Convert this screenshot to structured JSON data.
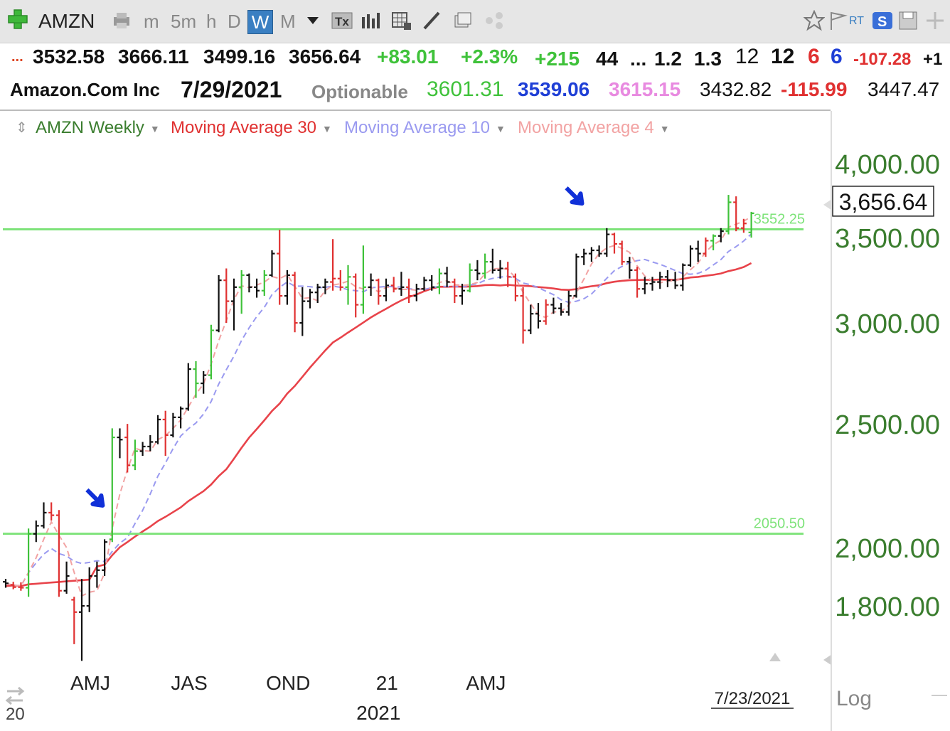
{
  "toolbar": {
    "symbol": "AMZN",
    "timeframes": [
      "m",
      "5m",
      "h",
      "D",
      "W",
      "M"
    ],
    "active_timeframe": "W",
    "rt_label": "RT"
  },
  "quote_row1": {
    "ellipsis": "...",
    "open": "3532.58",
    "high": "3666.11",
    "low": "3499.16",
    "close": "3656.64",
    "change": "+83.01",
    "change_pct": "+2.3%",
    "v1": "+215",
    "v2": "44",
    "v3": "...",
    "v4": "1.2",
    "v5": "1.3",
    "v6": "12",
    "v7": "12",
    "v8": "6",
    "v9": "6",
    "v10": "-107.28",
    "v11": "+1"
  },
  "quote_row2": {
    "name": "Amazon.Com Inc",
    "date": "7/29/2021",
    "optionable": "Optionable",
    "p1": "3601.31",
    "p2": "3539.06",
    "p3": "3615.15",
    "p4": "3432.82",
    "p5": "-115.99",
    "p6": "3447.47"
  },
  "legend": {
    "price": "AMZN Weekly",
    "ma30": "Moving Average 30",
    "ma10": "Moving Average 10",
    "ma4": "Moving Average 4"
  },
  "colors": {
    "up": "#3fc23a",
    "down": "#e03131",
    "neutral": "#111111",
    "ma30": "#e8434a",
    "ma10": "#9a9af0",
    "ma4": "#f2a3a3",
    "hline": "#7ee37a",
    "axis_text": "#3a7d2e",
    "arrow": "#1030d8"
  },
  "chart_data": {
    "type": "bar",
    "title": "AMZN Weekly",
    "scale": "log",
    "y_ticks": [
      {
        "value": 4000,
        "label": "4,000.00"
      },
      {
        "value": 3500,
        "label": "3,500.00"
      },
      {
        "value": 3000,
        "label": "3,000.00"
      },
      {
        "value": 2500,
        "label": "2,500.00"
      },
      {
        "value": 2000,
        "label": "2,000.00"
      },
      {
        "value": 1800,
        "label": "1,800.00"
      }
    ],
    "x_ticks": [
      {
        "index": 10,
        "label": "AMJ"
      },
      {
        "index": 23,
        "label": "JAS"
      },
      {
        "index": 36,
        "label": "OND"
      },
      {
        "index": 49,
        "label": "21"
      },
      {
        "index": 62,
        "label": "AMJ"
      }
    ],
    "x_year_label": {
      "index": 49,
      "label": "2021"
    },
    "x_left_label": "20",
    "last_date_label": "7/23/2021",
    "log_label": "Log",
    "last_price_label": "3,656.64",
    "hlines": [
      {
        "value": 3552.25,
        "label": "3552.25"
      },
      {
        "value": 2050.5,
        "label": "2050.50"
      }
    ],
    "arrows": [
      {
        "index": 12,
        "value": 2180
      },
      {
        "index": 75,
        "value": 3760
      }
    ],
    "series_names": [
      "AMZN Weekly",
      "Moving Average 30",
      "Moving Average 10",
      "Moving Average 4"
    ],
    "weeks": [
      {
        "o": 1880,
        "h": 1890,
        "l": 1860,
        "c": 1875,
        "t": "n"
      },
      {
        "o": 1870,
        "h": 1880,
        "l": 1855,
        "c": 1862,
        "t": "d"
      },
      {
        "o": 1862,
        "h": 1878,
        "l": 1850,
        "c": 1860,
        "t": "d"
      },
      {
        "o": 1860,
        "h": 2070,
        "l": 1830,
        "c": 2050,
        "t": "u"
      },
      {
        "o": 2050,
        "h": 2100,
        "l": 2020,
        "c": 2080,
        "t": "n"
      },
      {
        "o": 2080,
        "h": 2170,
        "l": 2070,
        "c": 2130,
        "t": "n"
      },
      {
        "o": 2130,
        "h": 2170,
        "l": 2100,
        "c": 2120,
        "t": "d"
      },
      {
        "o": 2120,
        "h": 2140,
        "l": 1830,
        "c": 1850,
        "t": "d"
      },
      {
        "o": 1850,
        "h": 1950,
        "l": 1840,
        "c": 1900,
        "t": "n"
      },
      {
        "o": 1820,
        "h": 1830,
        "l": 1680,
        "c": 1780,
        "t": "d"
      },
      {
        "o": 1780,
        "h": 1890,
        "l": 1630,
        "c": 1800,
        "t": "n"
      },
      {
        "o": 1800,
        "h": 1930,
        "l": 1780,
        "c": 1900,
        "t": "n"
      },
      {
        "o": 1900,
        "h": 1950,
        "l": 1860,
        "c": 1920,
        "t": "n"
      },
      {
        "o": 1920,
        "h": 2030,
        "l": 1900,
        "c": 2020,
        "t": "n"
      },
      {
        "o": 2030,
        "h": 2480,
        "l": 2020,
        "c": 2440,
        "t": "u"
      },
      {
        "o": 2440,
        "h": 2480,
        "l": 2350,
        "c": 2430,
        "t": "n"
      },
      {
        "o": 2440,
        "h": 2500,
        "l": 2290,
        "c": 2320,
        "t": "d"
      },
      {
        "o": 2320,
        "h": 2430,
        "l": 2300,
        "c": 2380,
        "t": "u"
      },
      {
        "o": 2380,
        "h": 2420,
        "l": 2360,
        "c": 2400,
        "t": "n"
      },
      {
        "o": 2400,
        "h": 2450,
        "l": 2380,
        "c": 2420,
        "t": "n"
      },
      {
        "o": 2420,
        "h": 2540,
        "l": 2410,
        "c": 2520,
        "t": "n"
      },
      {
        "o": 2520,
        "h": 2560,
        "l": 2360,
        "c": 2450,
        "t": "d"
      },
      {
        "o": 2450,
        "h": 2550,
        "l": 2440,
        "c": 2530,
        "t": "n"
      },
      {
        "o": 2530,
        "h": 2580,
        "l": 2480,
        "c": 2570,
        "t": "n"
      },
      {
        "o": 2570,
        "h": 2790,
        "l": 2560,
        "c": 2760,
        "t": "n"
      },
      {
        "o": 2760,
        "h": 2800,
        "l": 2620,
        "c": 2690,
        "t": "u"
      },
      {
        "o": 2690,
        "h": 2750,
        "l": 2640,
        "c": 2730,
        "t": "n"
      },
      {
        "o": 2730,
        "h": 2990,
        "l": 2710,
        "c": 2960,
        "t": "u"
      },
      {
        "o": 2960,
        "h": 3270,
        "l": 2950,
        "c": 3240,
        "t": "n"
      },
      {
        "o": 3240,
        "h": 3310,
        "l": 3000,
        "c": 3120,
        "t": "d"
      },
      {
        "o": 3120,
        "h": 3250,
        "l": 2960,
        "c": 3200,
        "t": "n"
      },
      {
        "o": 3200,
        "h": 3300,
        "l": 3050,
        "c": 3270,
        "t": "u"
      },
      {
        "o": 3270,
        "h": 3280,
        "l": 3170,
        "c": 3200,
        "t": "n"
      },
      {
        "o": 3200,
        "h": 3250,
        "l": 3140,
        "c": 3180,
        "t": "n"
      },
      {
        "o": 3180,
        "h": 3300,
        "l": 3150,
        "c": 3270,
        "t": "u"
      },
      {
        "o": 3270,
        "h": 3420,
        "l": 3260,
        "c": 3400,
        "t": "n"
      },
      {
        "o": 3400,
        "h": 3550,
        "l": 3100,
        "c": 3150,
        "t": "d"
      },
      {
        "o": 3150,
        "h": 3300,
        "l": 3100,
        "c": 3270,
        "t": "n"
      },
      {
        "o": 3270,
        "h": 3290,
        "l": 2950,
        "c": 3000,
        "t": "d"
      },
      {
        "o": 3000,
        "h": 3200,
        "l": 2930,
        "c": 3120,
        "t": "n"
      },
      {
        "o": 3120,
        "h": 3190,
        "l": 3080,
        "c": 3170,
        "t": "n"
      },
      {
        "o": 3170,
        "h": 3220,
        "l": 3110,
        "c": 3200,
        "t": "n"
      },
      {
        "o": 3200,
        "h": 3250,
        "l": 3160,
        "c": 3230,
        "t": "n"
      },
      {
        "o": 3230,
        "h": 3490,
        "l": 3180,
        "c": 3250,
        "t": "d"
      },
      {
        "o": 3250,
        "h": 3300,
        "l": 3180,
        "c": 3200,
        "t": "d"
      },
      {
        "o": 3200,
        "h": 3330,
        "l": 3100,
        "c": 3260,
        "t": "u"
      },
      {
        "o": 3260,
        "h": 3280,
        "l": 3030,
        "c": 3100,
        "t": "d"
      },
      {
        "o": 3100,
        "h": 3450,
        "l": 3050,
        "c": 3200,
        "t": "u"
      },
      {
        "o": 3200,
        "h": 3280,
        "l": 3150,
        "c": 3240,
        "t": "n"
      },
      {
        "o": 3240,
        "h": 3250,
        "l": 3100,
        "c": 3150,
        "t": "d"
      },
      {
        "o": 3150,
        "h": 3250,
        "l": 3120,
        "c": 3210,
        "t": "n"
      },
      {
        "o": 3210,
        "h": 3260,
        "l": 3170,
        "c": 3190,
        "t": "d"
      },
      {
        "o": 3190,
        "h": 3290,
        "l": 3150,
        "c": 3200,
        "t": "n"
      },
      {
        "o": 3200,
        "h": 3250,
        "l": 3110,
        "c": 3150,
        "t": "d"
      },
      {
        "o": 3150,
        "h": 3220,
        "l": 3120,
        "c": 3190,
        "t": "n"
      },
      {
        "o": 3190,
        "h": 3260,
        "l": 3180,
        "c": 3240,
        "t": "n"
      },
      {
        "o": 3240,
        "h": 3270,
        "l": 3180,
        "c": 3200,
        "t": "n"
      },
      {
        "o": 3200,
        "h": 3310,
        "l": 3160,
        "c": 3280,
        "t": "u"
      },
      {
        "o": 3280,
        "h": 3320,
        "l": 3200,
        "c": 3230,
        "t": "n"
      },
      {
        "o": 3230,
        "h": 3250,
        "l": 3110,
        "c": 3150,
        "t": "d"
      },
      {
        "o": 3150,
        "h": 3220,
        "l": 3100,
        "c": 3180,
        "t": "n"
      },
      {
        "o": 3180,
        "h": 3340,
        "l": 3170,
        "c": 3300,
        "t": "u"
      },
      {
        "o": 3300,
        "h": 3360,
        "l": 3240,
        "c": 3280,
        "t": "n"
      },
      {
        "o": 3280,
        "h": 3400,
        "l": 3250,
        "c": 3350,
        "t": "u"
      },
      {
        "o": 3350,
        "h": 3430,
        "l": 3280,
        "c": 3300,
        "t": "n"
      },
      {
        "o": 3300,
        "h": 3360,
        "l": 3250,
        "c": 3310,
        "t": "n"
      },
      {
        "o": 3310,
        "h": 3350,
        "l": 3200,
        "c": 3260,
        "t": "d"
      },
      {
        "o": 3260,
        "h": 3280,
        "l": 3120,
        "c": 3150,
        "t": "d"
      },
      {
        "o": 3150,
        "h": 3200,
        "l": 2890,
        "c": 2960,
        "t": "d"
      },
      {
        "o": 2960,
        "h": 3100,
        "l": 2940,
        "c": 3050,
        "t": "n"
      },
      {
        "o": 3050,
        "h": 3110,
        "l": 2970,
        "c": 3010,
        "t": "n"
      },
      {
        "o": 3010,
        "h": 3130,
        "l": 2990,
        "c": 3100,
        "t": "d"
      },
      {
        "o": 3100,
        "h": 3140,
        "l": 3050,
        "c": 3080,
        "t": "n"
      },
      {
        "o": 3080,
        "h": 3110,
        "l": 3040,
        "c": 3060,
        "t": "n"
      },
      {
        "o": 3060,
        "h": 3180,
        "l": 3040,
        "c": 3150,
        "t": "n"
      },
      {
        "o": 3150,
        "h": 3400,
        "l": 3140,
        "c": 3380,
        "t": "n"
      },
      {
        "o": 3380,
        "h": 3430,
        "l": 3330,
        "c": 3400,
        "t": "n"
      },
      {
        "o": 3400,
        "h": 3440,
        "l": 3350,
        "c": 3420,
        "t": "n"
      },
      {
        "o": 3420,
        "h": 3450,
        "l": 3380,
        "c": 3400,
        "t": "n"
      },
      {
        "o": 3400,
        "h": 3560,
        "l": 3380,
        "c": 3520,
        "t": "n"
      },
      {
        "o": 3520,
        "h": 3530,
        "l": 3400,
        "c": 3460,
        "t": "d"
      },
      {
        "o": 3460,
        "h": 3480,
        "l": 3330,
        "c": 3350,
        "t": "d"
      },
      {
        "o": 3350,
        "h": 3380,
        "l": 3250,
        "c": 3300,
        "t": "n"
      },
      {
        "o": 3300,
        "h": 3320,
        "l": 3140,
        "c": 3190,
        "t": "d"
      },
      {
        "o": 3190,
        "h": 3260,
        "l": 3160,
        "c": 3220,
        "t": "n"
      },
      {
        "o": 3220,
        "h": 3260,
        "l": 3180,
        "c": 3230,
        "t": "n"
      },
      {
        "o": 3230,
        "h": 3290,
        "l": 3190,
        "c": 3260,
        "t": "n"
      },
      {
        "o": 3260,
        "h": 3300,
        "l": 3200,
        "c": 3240,
        "t": "n"
      },
      {
        "o": 3240,
        "h": 3290,
        "l": 3190,
        "c": 3210,
        "t": "n"
      },
      {
        "o": 3210,
        "h": 3340,
        "l": 3180,
        "c": 3330,
        "t": "n"
      },
      {
        "o": 3330,
        "h": 3450,
        "l": 3320,
        "c": 3430,
        "t": "n"
      },
      {
        "o": 3430,
        "h": 3480,
        "l": 3350,
        "c": 3400,
        "t": "n"
      },
      {
        "o": 3400,
        "h": 3500,
        "l": 3380,
        "c": 3480,
        "t": "d"
      },
      {
        "o": 3480,
        "h": 3520,
        "l": 3420,
        "c": 3510,
        "t": "u"
      },
      {
        "o": 3510,
        "h": 3560,
        "l": 3470,
        "c": 3540,
        "t": "n"
      },
      {
        "o": 3540,
        "h": 3780,
        "l": 3520,
        "c": 3730,
        "t": "u"
      },
      {
        "o": 3730,
        "h": 3770,
        "l": 3540,
        "c": 3560,
        "t": "d"
      },
      {
        "o": 3560,
        "h": 3620,
        "l": 3530,
        "c": 3590,
        "t": "d"
      },
      {
        "o": 3532.58,
        "h": 3666.11,
        "l": 3499.16,
        "c": 3656.64,
        "t": "u"
      }
    ]
  }
}
